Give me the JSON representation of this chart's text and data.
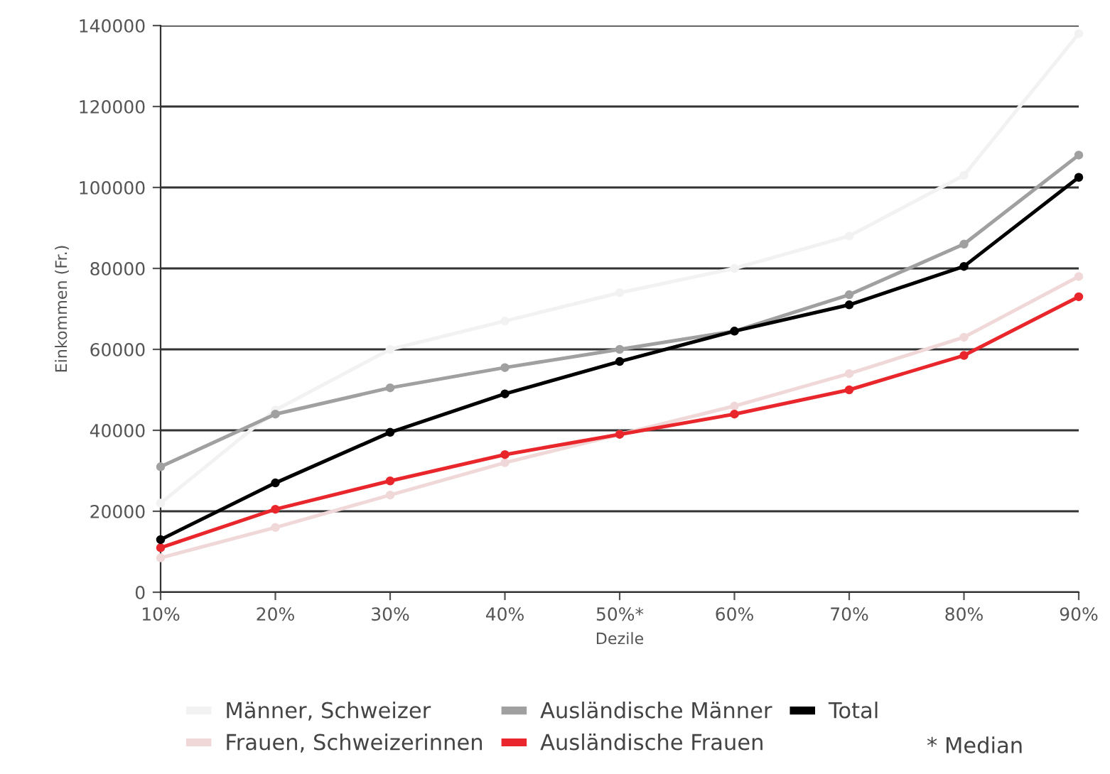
{
  "chart_data": {
    "type": "line",
    "xlabel": "Dezile",
    "ylabel": "Einkommen (Fr.)",
    "categories": [
      "10%",
      "20%",
      "30%",
      "40%",
      "50%*",
      "60%",
      "70%",
      "80%",
      "90%"
    ],
    "ylim": [
      0,
      140000
    ],
    "yticks": [
      {
        "value": 0,
        "label": "0"
      },
      {
        "value": 20000,
        "label": "20000"
      },
      {
        "value": 40000,
        "label": "40000"
      },
      {
        "value": 60000,
        "label": "60000"
      },
      {
        "value": 80000,
        "label": "80000"
      },
      {
        "value": 100000,
        "label": "100000"
      },
      {
        "value": 120000,
        "label": "120000"
      },
      {
        "value": 140000,
        "label": "140000"
      }
    ],
    "grid": "y",
    "legend": "bottom",
    "marker": "circle",
    "line_style": "solid",
    "series": [
      {
        "name": "Männer, Schweizer",
        "color": "#f2f2f2",
        "values": [
          22000,
          45000,
          60000,
          67000,
          74000,
          80000,
          88000,
          103000,
          138000
        ]
      },
      {
        "name": "Frauen, Schweizerinnen",
        "color": "#f0d8d8",
        "values": [
          8500,
          16000,
          24000,
          32000,
          39000,
          46000,
          54000,
          63000,
          78000
        ]
      },
      {
        "name": "Ausländische Männer",
        "color": "#a0a0a0",
        "values": [
          31000,
          44000,
          50500,
          55500,
          60000,
          64500,
          73500,
          86000,
          108000
        ]
      },
      {
        "name": "Ausländische Frauen",
        "color": "#e8262b",
        "values": [
          11000,
          20500,
          27500,
          34000,
          39000,
          44000,
          50000,
          58500,
          73000
        ]
      },
      {
        "name": "Total",
        "color": "#000000",
        "values": [
          13000,
          27000,
          39500,
          49000,
          57000,
          64500,
          71000,
          80500,
          102500
        ]
      }
    ],
    "annotations": [
      "* Median"
    ]
  }
}
